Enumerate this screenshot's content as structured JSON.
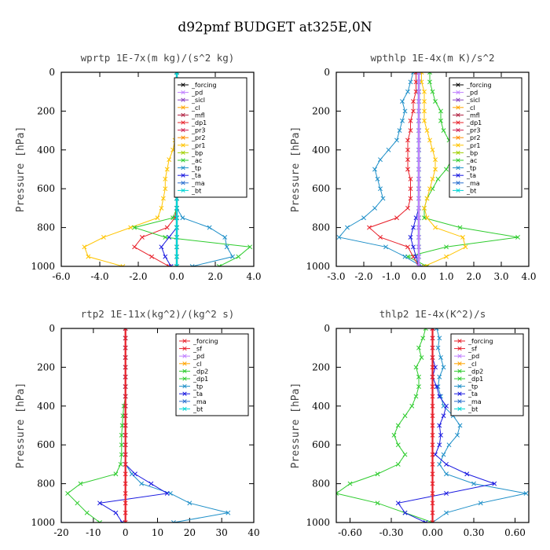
{
  "page": {
    "title": "d92pmf  BUDGET at325E,0N"
  },
  "chart_data": [
    {
      "type": "line",
      "title": "wprtp  1E-7x(m kg)/(s^2 kg)",
      "ylabel": "Pressure [hPa]",
      "xlim": [
        -6,
        4
      ],
      "ylim": [
        0,
        1000
      ],
      "y_reversed": true,
      "xticks": [
        -6,
        -4,
        -2,
        0,
        2,
        4
      ],
      "xtick_labels": [
        "-6.0",
        "-4.0",
        "-2.0",
        "0.0",
        "2.0",
        "4.0"
      ],
      "yticks": [
        0,
        200,
        400,
        600,
        800,
        1000
      ],
      "ytick_labels": [
        "0",
        "200",
        "400",
        "600",
        "800",
        "1000"
      ],
      "legend_position": "top-right",
      "legend": [
        "_forcing",
        "_pd",
        "_sicl",
        "_cl",
        "_mfl",
        "_dp1",
        "_pr3",
        "_pr2",
        "_pr1",
        "_bp",
        "_ac",
        "_tp",
        "_ta",
        "_ma",
        "_bt"
      ],
      "pressure": [
        0,
        50,
        100,
        150,
        200,
        250,
        300,
        350,
        400,
        450,
        500,
        550,
        600,
        650,
        700,
        750,
        800,
        850,
        900,
        950,
        1000
      ],
      "series": [
        {
          "name": "_pr1",
          "color": "#ffc400",
          "values": [
            0,
            0,
            0,
            0,
            0,
            0,
            0,
            -0.1,
            -0.2,
            -0.4,
            -0.5,
            -0.6,
            -0.6,
            -0.7,
            -0.8,
            -1.0,
            -2.4,
            -3.8,
            -4.8,
            -4.6,
            -2.8
          ]
        },
        {
          "name": "_dp1",
          "color": "#e8202a",
          "values": [
            0,
            0,
            0,
            0,
            0,
            0,
            0,
            0,
            0,
            0,
            0,
            0,
            0,
            0,
            0,
            -0.1,
            -0.5,
            -1.8,
            -2.2,
            -1.3,
            -0.4
          ]
        },
        {
          "name": "_ac",
          "color": "#2ecc2e",
          "values": [
            0,
            0,
            0,
            0,
            0,
            0,
            0,
            0,
            0,
            0,
            0,
            0,
            0,
            0,
            0,
            -0.2,
            -2.2,
            -0.6,
            3.8,
            3.2,
            2.2
          ]
        },
        {
          "name": "_tp",
          "color": "#1e8fc8",
          "values": [
            0,
            0,
            0,
            0,
            0,
            0,
            0,
            0,
            0,
            0,
            0,
            0,
            0,
            0,
            0,
            0.3,
            1.7,
            2.5,
            2.6,
            2.9,
            0.8
          ]
        },
        {
          "name": "_ta",
          "color": "#1a1ae0",
          "values": [
            0,
            0,
            0,
            0,
            0,
            0,
            0,
            0,
            0,
            0,
            0,
            0,
            0,
            0,
            0,
            0,
            0,
            -0.4,
            -0.8,
            -0.6,
            -0.3
          ]
        },
        {
          "name": "_forcing",
          "color": "#000000",
          "values": [
            0,
            0,
            0,
            0,
            0,
            0,
            0,
            0,
            0,
            0,
            0,
            0,
            0,
            0,
            0,
            0,
            0,
            0,
            0,
            0,
            0
          ]
        },
        {
          "name": "_bt",
          "color": "#00d5d5",
          "values": [
            0,
            0,
            0,
            0,
            0,
            0,
            0,
            0,
            0,
            0,
            0,
            0,
            0,
            0,
            0,
            0,
            0,
            0,
            0,
            0,
            0
          ]
        }
      ]
    },
    {
      "type": "line",
      "title": "wpthlp  1E-4x(m K)/s^2",
      "ylabel": "Pressure [hPa]",
      "xlim": [
        -3,
        4
      ],
      "ylim": [
        0,
        1000
      ],
      "y_reversed": true,
      "xticks": [
        -3,
        -2,
        -1,
        0,
        1,
        2,
        3,
        4
      ],
      "xtick_labels": [
        "-3.0",
        "-2.0",
        "-1.0",
        "0.0",
        "1.0",
        "2.0",
        "3.0",
        "4.0"
      ],
      "yticks": [
        0,
        200,
        400,
        600,
        800,
        1000
      ],
      "ytick_labels": [
        "0",
        "200",
        "400",
        "600",
        "800",
        "1000"
      ],
      "legend_position": "top-right",
      "legend": [
        "_forcing",
        "_pd",
        "_sicl",
        "_cl",
        "_mfl",
        "_dp1",
        "_pr3",
        "_pr2",
        "_pr1",
        "_bp",
        "_ac",
        "_tp",
        "_ta",
        "_ma",
        "_bt"
      ],
      "pressure": [
        0,
        50,
        100,
        150,
        200,
        250,
        300,
        350,
        400,
        450,
        500,
        550,
        600,
        650,
        700,
        750,
        800,
        850,
        900,
        950,
        1000
      ],
      "series": [
        {
          "name": "_ac",
          "color": "#2ecc2e",
          "values": [
            0.4,
            0.4,
            0.5,
            0.6,
            0.8,
            0.8,
            0.9,
            1.1,
            1.3,
            1.2,
            1.0,
            0.7,
            0.5,
            0.3,
            0.2,
            0.2,
            1.5,
            3.6,
            1.0,
            -0.4,
            0.3
          ]
        },
        {
          "name": "_tp",
          "color": "#1e8fc8",
          "values": [
            -0.2,
            -0.3,
            -0.4,
            -0.6,
            -0.5,
            -0.6,
            -0.7,
            -0.8,
            -1.1,
            -1.4,
            -1.6,
            -1.5,
            -1.4,
            -1.3,
            -1.6,
            -2.0,
            -2.6,
            -2.9,
            -1.2,
            -0.5,
            0.1
          ]
        },
        {
          "name": "_dp1",
          "color": "#e8202a",
          "values": [
            -0.1,
            -0.1,
            -0.1,
            -0.2,
            -0.2,
            -0.3,
            -0.3,
            -0.4,
            -0.4,
            -0.4,
            -0.4,
            -0.3,
            -0.3,
            -0.3,
            -0.4,
            -0.8,
            -1.8,
            -1.4,
            -0.4,
            -0.2,
            0
          ]
        },
        {
          "name": "_pr1",
          "color": "#ffc400",
          "values": [
            0.1,
            0.1,
            0.2,
            0.2,
            0.2,
            0.2,
            0.3,
            0.4,
            0.5,
            0.6,
            0.6,
            0.5,
            0.4,
            0.3,
            0.2,
            0.3,
            0.6,
            1.6,
            1.7,
            1.0,
            0.2
          ]
        },
        {
          "name": "_ta",
          "color": "#1a1ae0",
          "values": [
            0,
            0,
            0,
            0,
            0,
            0,
            0,
            0,
            0,
            0,
            0,
            0,
            0,
            0,
            0,
            -0.1,
            -0.2,
            -0.3,
            -0.2,
            -0.1,
            0
          ]
        },
        {
          "name": "_forcing",
          "color": "#000000",
          "values": [
            0,
            0,
            0,
            0,
            0,
            0,
            0,
            0,
            0,
            0,
            0,
            0,
            0,
            0,
            0,
            0,
            0,
            0,
            0,
            0,
            0
          ]
        },
        {
          "name": "_bt",
          "color": "#00d5d5",
          "values": [
            0,
            0,
            0,
            0,
            0,
            0,
            0,
            0,
            0,
            0,
            0,
            0,
            0,
            0,
            0,
            0,
            0,
            0,
            0,
            0,
            0
          ]
        },
        {
          "name": "_pd",
          "color": "#c080ff",
          "values": [
            0,
            0,
            0,
            0,
            0,
            0,
            0,
            0,
            0,
            0,
            0,
            0,
            0,
            0,
            0,
            0,
            0,
            0,
            0,
            0,
            0
          ]
        }
      ]
    },
    {
      "type": "line",
      "title": "rtp2  1E-11x(kg^2)/(kg^2 s)",
      "ylabel": "Pressure [hPa]",
      "xlim": [
        -20,
        40
      ],
      "ylim": [
        0,
        1000
      ],
      "y_reversed": true,
      "xticks": [
        -20,
        -10,
        0,
        10,
        20,
        30,
        40
      ],
      "xtick_labels": [
        "-20",
        "-10",
        "0",
        "10",
        "20",
        "30",
        "40"
      ],
      "yticks": [
        0,
        200,
        400,
        600,
        800,
        1000
      ],
      "ytick_labels": [
        "0",
        "200",
        "400",
        "600",
        "800",
        "1000"
      ],
      "legend_position": "top-right",
      "legend": [
        "_forcing",
        "_sf",
        "_pd",
        "_cl",
        "_dp2",
        "_dp1",
        "_tp",
        "_ta",
        "_ma",
        "_bt"
      ],
      "pressure": [
        0,
        50,
        100,
        150,
        200,
        250,
        300,
        350,
        400,
        450,
        500,
        550,
        600,
        650,
        700,
        750,
        800,
        850,
        900,
        950,
        1000
      ],
      "series": [
        {
          "name": "_dp1",
          "color": "#2ecc2e",
          "values": [
            0,
            0,
            0,
            0,
            0,
            0,
            0,
            0,
            -0.5,
            -0.8,
            -1,
            -1.2,
            -1.2,
            -1.2,
            -1.5,
            -3,
            -14,
            -18,
            -15,
            -12,
            -8
          ]
        },
        {
          "name": "_tp",
          "color": "#1e8fc8",
          "values": [
            0,
            0,
            0,
            0,
            0,
            0,
            0,
            0,
            0,
            0,
            0,
            0,
            0,
            0,
            0,
            2,
            5,
            14,
            20,
            32,
            15
          ]
        },
        {
          "name": "_ta",
          "color": "#1a1ae0",
          "values": [
            0,
            0,
            0,
            0,
            0,
            0,
            0,
            0,
            0,
            0,
            0,
            0,
            0,
            0,
            0,
            3,
            8,
            13,
            -8,
            -3,
            -1
          ]
        },
        {
          "name": "_forcing",
          "color": "#e8202a",
          "values": [
            0,
            0,
            0,
            0,
            0,
            0,
            0,
            0,
            0,
            0,
            0,
            0,
            0,
            0,
            0,
            0,
            0,
            0,
            0,
            0,
            0
          ]
        }
      ]
    },
    {
      "type": "line",
      "title": "thlp2  1E-4x(K^2)/s",
      "ylabel": "Pressure [hPa]",
      "xlim": [
        -0.7,
        0.7
      ],
      "ylim": [
        0,
        1000
      ],
      "y_reversed": true,
      "xticks": [
        -0.6,
        -0.3,
        0,
        0.3,
        0.6
      ],
      "xtick_labels": [
        "-0.60",
        "-0.30",
        "0.00",
        "0.30",
        "0.60"
      ],
      "yticks": [
        0,
        200,
        400,
        600,
        800,
        1000
      ],
      "ytick_labels": [
        "0",
        "200",
        "400",
        "600",
        "800",
        "1000"
      ],
      "legend_position": "top-right",
      "legend": [
        "_forcing",
        "_sf",
        "_pd",
        "_cl",
        "_dp2",
        "_dp1",
        "_tp",
        "_ta",
        "_ma",
        "_bt"
      ],
      "pressure": [
        0,
        50,
        100,
        150,
        200,
        250,
        300,
        350,
        400,
        450,
        500,
        550,
        600,
        650,
        700,
        750,
        800,
        850,
        900,
        950,
        1000
      ],
      "series": [
        {
          "name": "_dp1",
          "color": "#2ecc2e",
          "values": [
            -0.05,
            -0.07,
            -0.1,
            -0.08,
            -0.12,
            -0.1,
            -0.1,
            -0.12,
            -0.15,
            -0.2,
            -0.25,
            -0.28,
            -0.25,
            -0.2,
            -0.25,
            -0.4,
            -0.6,
            -0.7,
            -0.4,
            -0.2,
            0
          ]
        },
        {
          "name": "_tp",
          "color": "#1e8fc8",
          "values": [
            0.03,
            0.05,
            0.04,
            0.06,
            0.08,
            0.05,
            0.04,
            0.06,
            0.08,
            0.15,
            0.2,
            0.18,
            0.12,
            0.08,
            0.05,
            0.1,
            0.3,
            0.68,
            0.35,
            0.1,
            0
          ]
        },
        {
          "name": "_ta",
          "color": "#1a1ae0",
          "values": [
            0,
            0,
            0,
            0,
            0.02,
            0,
            0.03,
            0.05,
            0.1,
            0.08,
            0.05,
            0.06,
            0.05,
            0.02,
            0.1,
            0.25,
            0.45,
            0.1,
            -0.25,
            -0.2,
            -0.05
          ]
        },
        {
          "name": "_forcing",
          "color": "#e8202a",
          "values": [
            0,
            0,
            0,
            0,
            0,
            0,
            0,
            0,
            0,
            0,
            0,
            0,
            0,
            0,
            0,
            0,
            0,
            0,
            0,
            0,
            0
          ]
        }
      ]
    }
  ]
}
